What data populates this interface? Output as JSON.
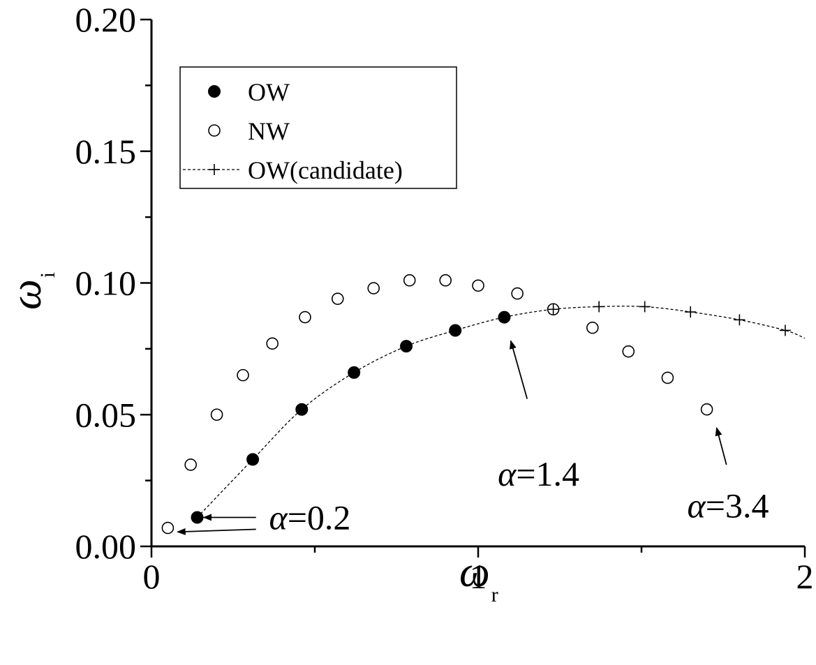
{
  "chart_data": {
    "type": "scatter",
    "xlabel": "ω",
    "xlabel_sub": "r",
    "ylabel": "ω",
    "ylabel_sub": "i",
    "xlim": [
      0,
      2
    ],
    "ylim": [
      0,
      0.2
    ],
    "x_ticks": [
      0,
      1,
      2
    ],
    "x_tick_labels": [
      "0",
      "1",
      "2"
    ],
    "y_ticks": [
      0,
      0.05,
      0.1,
      0.15,
      0.2
    ],
    "y_tick_labels": [
      "0.00",
      "0.05",
      "0.10",
      "0.15",
      "0.20"
    ],
    "legend_position": "top-left",
    "series": [
      {
        "name": "OW",
        "marker": "filled-circle",
        "x": [
          0.14,
          0.31,
          0.46,
          0.62,
          0.78,
          0.93,
          1.08
        ],
        "y": [
          0.011,
          0.033,
          0.052,
          0.066,
          0.076,
          0.082,
          0.087
        ]
      },
      {
        "name": "NW",
        "marker": "open-circle",
        "x": [
          0.05,
          0.12,
          0.2,
          0.28,
          0.37,
          0.47,
          0.57,
          0.68,
          0.79,
          0.9,
          1.0,
          1.12,
          1.23,
          1.35,
          1.46,
          1.58,
          1.7
        ],
        "y": [
          0.007,
          0.031,
          0.05,
          0.065,
          0.077,
          0.087,
          0.094,
          0.098,
          0.101,
          0.101,
          0.099,
          0.096,
          0.09,
          0.083,
          0.074,
          0.064,
          0.052
        ]
      },
      {
        "name": "OW(candidate)",
        "marker": "plus",
        "line": "dashed",
        "x": [
          1.23,
          1.37,
          1.51,
          1.65,
          1.8,
          1.94
        ],
        "y": [
          0.09,
          0.091,
          0.091,
          0.089,
          0.086,
          0.082
        ],
        "curve_x": [
          0.14,
          0.31,
          0.46,
          0.62,
          0.78,
          0.93,
          1.08,
          1.23,
          1.37,
          1.51,
          1.65,
          1.8,
          1.94,
          2.0
        ],
        "curve_y": [
          0.011,
          0.033,
          0.052,
          0.066,
          0.076,
          0.082,
          0.087,
          0.09,
          0.091,
          0.091,
          0.089,
          0.086,
          0.082,
          0.079
        ]
      }
    ],
    "annotations": [
      {
        "symbol": "α",
        "text": "=0.2",
        "x": 0.36,
        "y": 0.0065,
        "arrows": [
          [
            0.32,
            0.011,
            0.16,
            0.011
          ],
          [
            0.32,
            0.0065,
            0.08,
            0.0055
          ]
        ]
      },
      {
        "symbol": "α",
        "text": "=1.4",
        "x": 1.06,
        "y": 0.023,
        "arrows": [
          [
            1.15,
            0.056,
            1.1,
            0.078
          ]
        ]
      },
      {
        "symbol": "α",
        "text": "=3.4",
        "x": 1.64,
        "y": 0.011,
        "arrows": [
          [
            1.76,
            0.031,
            1.73,
            0.045
          ]
        ]
      }
    ]
  }
}
